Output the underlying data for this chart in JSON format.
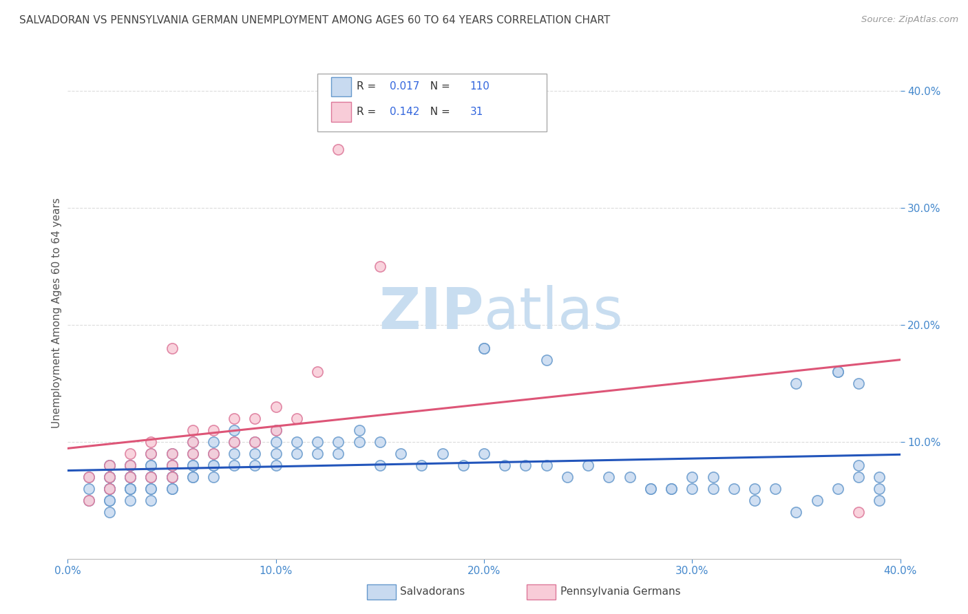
{
  "title": "SALVADORAN VS PENNSYLVANIA GERMAN UNEMPLOYMENT AMONG AGES 60 TO 64 YEARS CORRELATION CHART",
  "source": "Source: ZipAtlas.com",
  "ylabel": "Unemployment Among Ages 60 to 64 years",
  "salvadoran_R": 0.017,
  "salvadoran_N": 110,
  "penn_german_R": 0.142,
  "penn_german_N": 31,
  "xlim": [
    0.0,
    0.4
  ],
  "ylim": [
    0.0,
    0.42
  ],
  "xticks": [
    0.0,
    0.1,
    0.2,
    0.3,
    0.4
  ],
  "yticks_right": [
    0.1,
    0.2,
    0.3,
    0.4
  ],
  "salvadoran_face_color": "#c8daf0",
  "salvadoran_edge_color": "#6699cc",
  "penn_german_face_color": "#f8ccd8",
  "penn_german_edge_color": "#dd7799",
  "salvadoran_line_color": "#2255bb",
  "penn_german_line_color": "#dd5577",
  "title_color": "#444444",
  "source_color": "#999999",
  "axis_label_color": "#555555",
  "tick_label_color": "#4488cc",
  "watermark_color_zip": "#c8ddf0",
  "watermark_color_atlas": "#c8ddf0",
  "background_color": "#ffffff",
  "grid_color": "#cccccc",
  "salvadoran_x": [
    0.01,
    0.01,
    0.01,
    0.02,
    0.02,
    0.02,
    0.02,
    0.02,
    0.02,
    0.02,
    0.02,
    0.02,
    0.02,
    0.02,
    0.03,
    0.03,
    0.03,
    0.03,
    0.03,
    0.03,
    0.03,
    0.03,
    0.03,
    0.04,
    0.04,
    0.04,
    0.04,
    0.04,
    0.04,
    0.04,
    0.04,
    0.05,
    0.05,
    0.05,
    0.05,
    0.05,
    0.05,
    0.05,
    0.05,
    0.06,
    0.06,
    0.06,
    0.06,
    0.06,
    0.06,
    0.07,
    0.07,
    0.07,
    0.07,
    0.07,
    0.08,
    0.08,
    0.08,
    0.08,
    0.09,
    0.09,
    0.09,
    0.1,
    0.1,
    0.1,
    0.1,
    0.11,
    0.11,
    0.12,
    0.12,
    0.13,
    0.13,
    0.14,
    0.14,
    0.15,
    0.15,
    0.16,
    0.17,
    0.18,
    0.19,
    0.2,
    0.2,
    0.21,
    0.22,
    0.23,
    0.24,
    0.25,
    0.26,
    0.27,
    0.28,
    0.29,
    0.3,
    0.31,
    0.32,
    0.33,
    0.34,
    0.35,
    0.36,
    0.37,
    0.37,
    0.38,
    0.38,
    0.38,
    0.39,
    0.39,
    0.28,
    0.29,
    0.3,
    0.31,
    0.33,
    0.35,
    0.37,
    0.39,
    0.23,
    0.2
  ],
  "salvadoran_y": [
    0.05,
    0.06,
    0.07,
    0.05,
    0.06,
    0.06,
    0.07,
    0.07,
    0.08,
    0.05,
    0.06,
    0.07,
    0.08,
    0.04,
    0.05,
    0.06,
    0.07,
    0.07,
    0.08,
    0.06,
    0.07,
    0.06,
    0.08,
    0.06,
    0.07,
    0.07,
    0.08,
    0.06,
    0.08,
    0.05,
    0.09,
    0.06,
    0.07,
    0.07,
    0.08,
    0.07,
    0.08,
    0.06,
    0.09,
    0.07,
    0.08,
    0.08,
    0.09,
    0.07,
    0.1,
    0.07,
    0.08,
    0.09,
    0.08,
    0.1,
    0.08,
    0.09,
    0.1,
    0.11,
    0.08,
    0.09,
    0.1,
    0.08,
    0.09,
    0.1,
    0.11,
    0.09,
    0.1,
    0.09,
    0.1,
    0.09,
    0.1,
    0.1,
    0.11,
    0.08,
    0.1,
    0.09,
    0.08,
    0.09,
    0.08,
    0.09,
    0.18,
    0.08,
    0.08,
    0.08,
    0.07,
    0.08,
    0.07,
    0.07,
    0.06,
    0.06,
    0.06,
    0.06,
    0.06,
    0.05,
    0.06,
    0.04,
    0.05,
    0.06,
    0.16,
    0.07,
    0.08,
    0.15,
    0.05,
    0.06,
    0.06,
    0.06,
    0.07,
    0.07,
    0.06,
    0.15,
    0.16,
    0.07,
    0.17,
    0.18
  ],
  "penn_german_x": [
    0.01,
    0.01,
    0.02,
    0.02,
    0.02,
    0.03,
    0.03,
    0.03,
    0.04,
    0.04,
    0.04,
    0.05,
    0.05,
    0.05,
    0.05,
    0.06,
    0.06,
    0.06,
    0.07,
    0.07,
    0.08,
    0.08,
    0.09,
    0.09,
    0.1,
    0.1,
    0.11,
    0.12,
    0.13,
    0.15,
    0.38
  ],
  "penn_german_y": [
    0.05,
    0.07,
    0.06,
    0.07,
    0.08,
    0.07,
    0.08,
    0.09,
    0.07,
    0.09,
    0.1,
    0.07,
    0.08,
    0.09,
    0.18,
    0.09,
    0.1,
    0.11,
    0.09,
    0.11,
    0.1,
    0.12,
    0.1,
    0.12,
    0.11,
    0.13,
    0.12,
    0.16,
    0.35,
    0.25,
    0.04
  ]
}
